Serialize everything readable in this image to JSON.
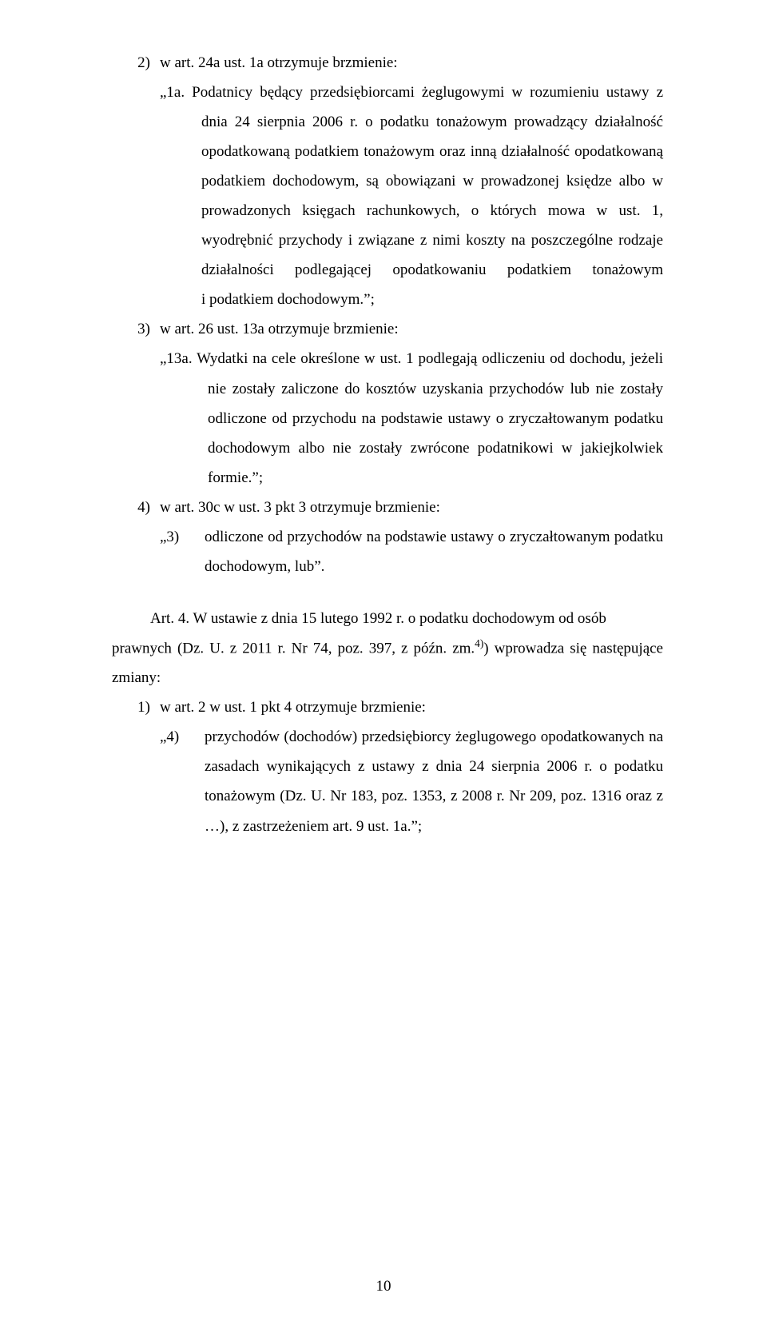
{
  "items": {
    "i2": {
      "num": "2)",
      "lead": "w art. 24a ust. 1a otrzymuje brzmienie:",
      "quote_first": "„1a. Podatnicy będący przedsiębiorcami żeglugowymi w rozumieniu ustawy z dnia 24 sierpnia 2006 r. o podatku tonażowym prowadzący działalność opodatkowaną podatkiem tonażowym oraz inną działalność opodatkowaną podatkiem dochodowym, są obowiązani w prowadzonej księdze albo w prowadzonych księgach rachunkowych, o których mowa w ust. 1, wyodrębnić przychody i związane z nimi koszty na poszczególne rodzaje działalności podlegającej opodatkowaniu podatkiem tonażowym i podatkiem dochodowym.”;"
    },
    "i3": {
      "num": "3)",
      "lead": "w art. 26 ust. 13a otrzymuje brzmienie:",
      "quote_first": "„13a. Wydatki na cele określone w ust. 1 podlegają odliczeniu od dochodu, jeżeli nie zostały zaliczone do kosztów uzyskania przychodów lub nie zostały odliczone od przychodu na podstawie ustawy o zryczałtowanym podatku dochodowym albo nie zostały zwrócone podatnikowi w jakiejkolwiek formie.”;"
    },
    "i4": {
      "num": "4)",
      "lead": "w art. 30c w ust. 3 pkt 3 otrzymuje brzmienie:",
      "inner_num": "„3)",
      "inner_txt": "odliczone od przychodów na podstawie ustawy o zryczałtowanym podatku dochodowym, lub”."
    }
  },
  "art4": {
    "p1_a": "Art. 4.  W ustawie z dnia 15 lutego 1992 r. o podatku dochodowym od osób ",
    "p1_b": "prawnych (Dz. U. z 2011 r. Nr 74, poz. 397, z późn. zm.",
    "sup": "4)",
    "p1_c": ") wprowadza się następujące zmiany:",
    "i1": {
      "num": "1)",
      "lead": "w art. 2 w ust. 1 pkt 4 otrzymuje brzmienie:",
      "inner_num": "„4)",
      "inner_txt": "przychodów (dochodów) przedsiębiorcy żeglugowego opodatkowanych na zasadach wynikających z ustawy z dnia 24 sierpnia 2006 r. o podatku tonażowym (Dz. U. Nr 183, poz. 1353, z 2008 r. Nr 209, poz. 1316 oraz z …), z zastrzeżeniem art. 9 ust. 1a.”;"
    }
  },
  "page_number": "10"
}
